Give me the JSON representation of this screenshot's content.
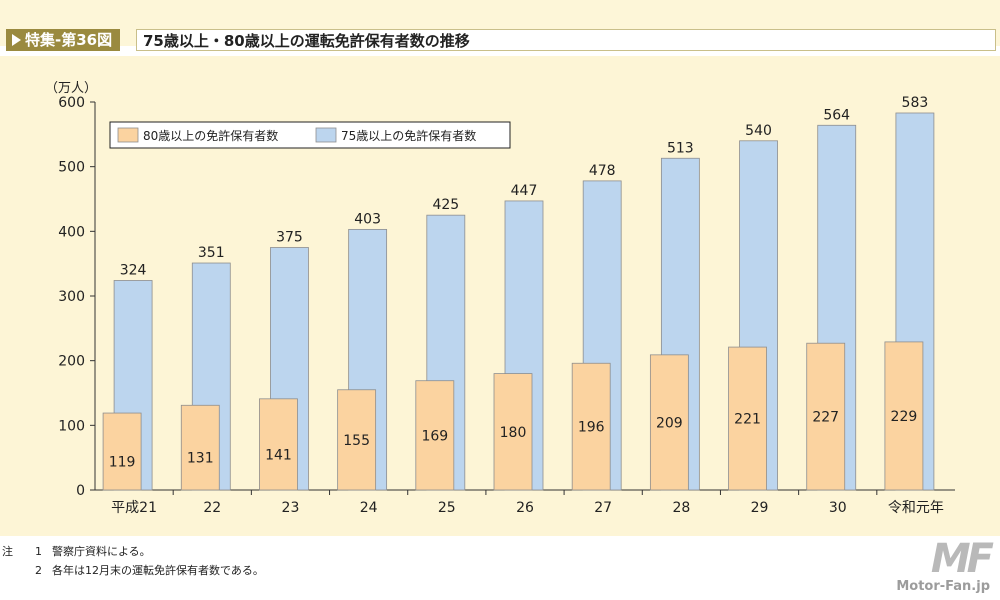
{
  "header": {
    "tag": "特集-第36図",
    "title": "75歳以上・80歳以上の運転免許保有者数の推移"
  },
  "chart_data": {
    "type": "bar",
    "ylabel": "（万人）",
    "ylim": [
      0,
      600
    ],
    "yticks": [
      0,
      100,
      200,
      300,
      400,
      500,
      600
    ],
    "categories": [
      "平成21",
      "22",
      "23",
      "24",
      "25",
      "26",
      "27",
      "28",
      "29",
      "30",
      "令和元年"
    ],
    "series": [
      {
        "name": "80歳以上の免許保有者数",
        "values": [
          119,
          131,
          141,
          155,
          169,
          180,
          196,
          209,
          221,
          227,
          229
        ],
        "color": "#fbd3a0"
      },
      {
        "name": "75歳以上の免許保有者数",
        "values": [
          324,
          351,
          375,
          403,
          425,
          447,
          478,
          513,
          540,
          564,
          583
        ],
        "color": "#bcd5ee"
      }
    ],
    "legend": "top-left",
    "grid": false
  },
  "notes": {
    "lead": "注",
    "items": [
      {
        "num": "1",
        "text": "警察庁資料による。"
      },
      {
        "num": "2",
        "text": "各年は12月末の運転免許保有者数である。"
      }
    ]
  },
  "watermark": {
    "logo": "MF",
    "site": "Motor-Fan.jp"
  }
}
